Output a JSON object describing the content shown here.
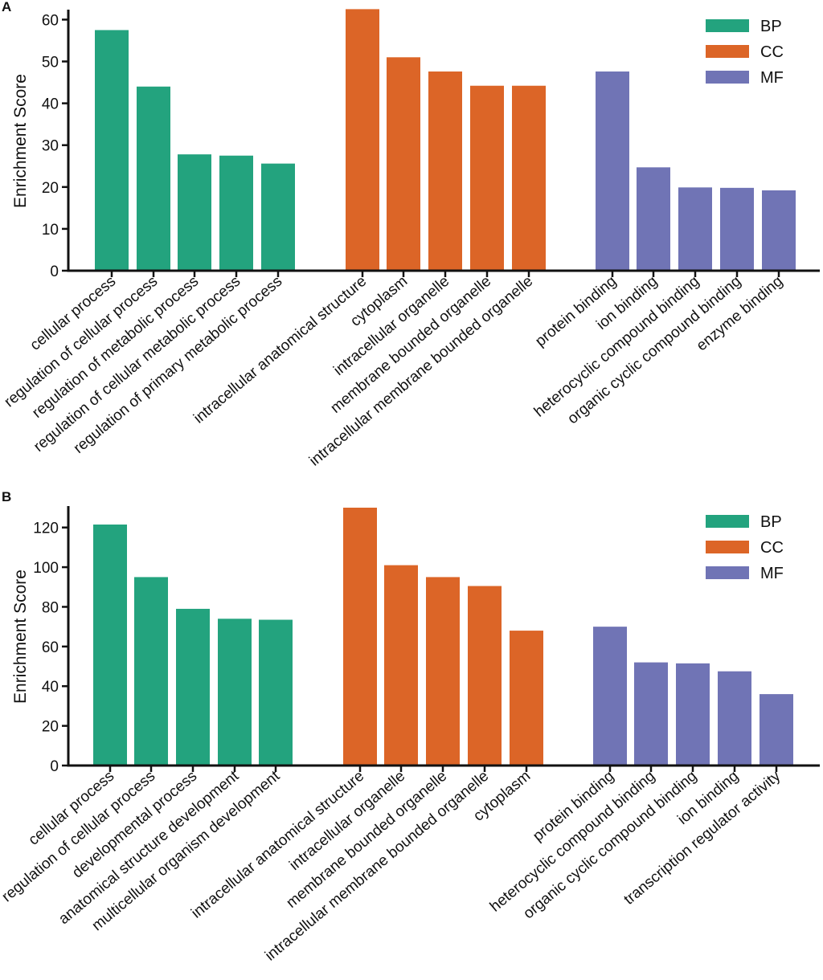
{
  "colors": {
    "BP": "#23a37e",
    "CC": "#dc6527",
    "MF": "#7074b5",
    "axis": "#111111"
  },
  "chart_data": [
    {
      "panel": "A",
      "type": "bar",
      "ylabel": "Enrichment Score",
      "ylim": [
        0,
        62
      ],
      "yticks": [
        0,
        10,
        20,
        30,
        40,
        50,
        60
      ],
      "legend": [
        "BP",
        "CC",
        "MF"
      ],
      "legend_position": "top-right",
      "series": [
        {
          "name": "BP",
          "categories": [
            "cellular process",
            "regulation of cellular process",
            "regulation of metabolic process",
            "regulation of cellular metabolic process",
            "regulation of primary metabolic process"
          ],
          "values": [
            57.5,
            44.0,
            27.8,
            27.5,
            25.6
          ]
        },
        {
          "name": "CC",
          "categories": [
            "intracellular anatomical structure",
            "cytoplasm",
            "intracellular organelle",
            "membrane bounded organelle",
            "intracellular membrane bounded organelle"
          ],
          "values": [
            62.5,
            51.0,
            47.6,
            44.2,
            44.2
          ]
        },
        {
          "name": "MF",
          "categories": [
            "protein binding",
            "ion binding",
            "heterocyclic compound binding",
            "organic cyclic compound binding",
            "enzyme binding"
          ],
          "values": [
            47.6,
            24.7,
            19.9,
            19.8,
            19.2
          ]
        }
      ]
    },
    {
      "panel": "B",
      "type": "bar",
      "ylabel": "Enrichment Score",
      "ylim": [
        0,
        130
      ],
      "yticks": [
        0,
        20,
        40,
        60,
        80,
        100,
        120
      ],
      "legend": [
        "BP",
        "CC",
        "MF"
      ],
      "legend_position": "top-right",
      "series": [
        {
          "name": "BP",
          "categories": [
            "cellular process",
            "regulation of cellular process",
            "developmental process",
            "anatomical structure development",
            "multicellular organism development"
          ],
          "values": [
            121.5,
            95.0,
            79.0,
            74.0,
            73.5
          ]
        },
        {
          "name": "CC",
          "categories": [
            "intracellular anatomical structure",
            "intracellular organelle",
            "membrane bounded organelle",
            "intracellular membrane bounded organelle",
            "cytoplasm"
          ],
          "values": [
            130.0,
            101.0,
            95.0,
            90.5,
            68.0
          ]
        },
        {
          "name": "MF",
          "categories": [
            "protein binding",
            "heterocyclic compound binding",
            "organic cyclic compound binding",
            "ion binding",
            "transcription regulator activity"
          ],
          "values": [
            70.0,
            52.0,
            51.5,
            47.5,
            36.0
          ]
        }
      ]
    }
  ]
}
